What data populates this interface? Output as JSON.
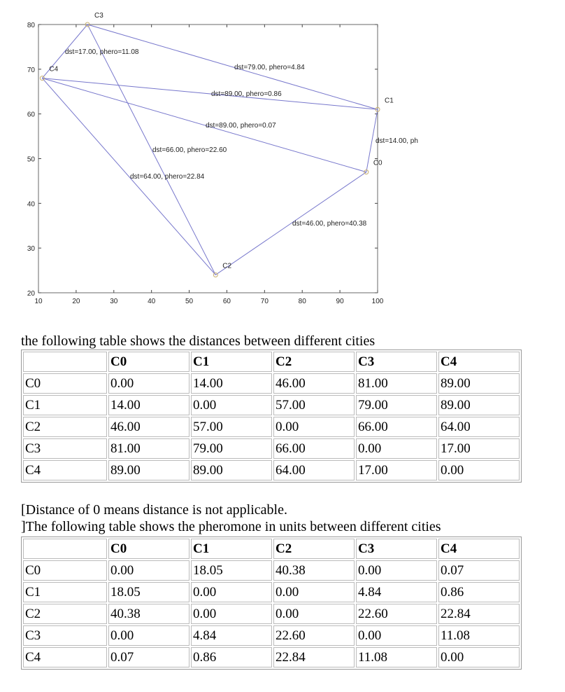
{
  "chart_data": {
    "type": "scatter",
    "xlim": [
      10,
      100
    ],
    "ylim": [
      20,
      80
    ],
    "xticks": [
      10,
      20,
      30,
      40,
      50,
      60,
      70,
      80,
      90,
      100
    ],
    "yticks": [
      20,
      30,
      40,
      50,
      60,
      70,
      80
    ],
    "line_color": "#7777cc",
    "marker_color": "#c8b070",
    "cities": [
      {
        "name": "C0",
        "x": 97,
        "y": 47
      },
      {
        "name": "C1",
        "x": 100,
        "y": 61
      },
      {
        "name": "C2",
        "x": 57,
        "y": 24
      },
      {
        "name": "C3",
        "x": 23,
        "y": 80
      },
      {
        "name": "C4",
        "x": 11,
        "y": 68
      }
    ],
    "edges": [
      {
        "from": "C4",
        "to": "C3",
        "label": "dst=17.00, phero=11.08"
      },
      {
        "from": "C3",
        "to": "C1",
        "label": "dst=79.00, phero=4.84"
      },
      {
        "from": "C4",
        "to": "C1",
        "label": "dst=89.00, phero=0.86"
      },
      {
        "from": "C4",
        "to": "C0",
        "label": "dst=89.00, phero=0.07"
      },
      {
        "from": "C3",
        "to": "C2",
        "label": "dst=66.00, phero=22.60"
      },
      {
        "from": "C4",
        "to": "C2",
        "label": "dst=64.00, phero=22.84"
      },
      {
        "from": "C1",
        "to": "C0",
        "label": "dst=14.00, ph"
      },
      {
        "from": "C0",
        "to": "C2",
        "label": "dst=46.00, phero=40.38"
      }
    ]
  },
  "distance_caption": "the following table shows the distances between different cities",
  "distance_table": {
    "headers": [
      "",
      "C0",
      "C1",
      "C2",
      "C3",
      "C4"
    ],
    "rows": [
      [
        "C0",
        "0.00",
        "14.00",
        "46.00",
        "81.00",
        "89.00"
      ],
      [
        "C1",
        "14.00",
        "0.00",
        "57.00",
        "79.00",
        "89.00"
      ],
      [
        "C2",
        "46.00",
        "57.00",
        "0.00",
        "66.00",
        "64.00"
      ],
      [
        "C3",
        "81.00",
        "79.00",
        "66.00",
        "0.00",
        "17.00"
      ],
      [
        "C4",
        "89.00",
        "89.00",
        "64.00",
        "17.00",
        "0.00"
      ]
    ]
  },
  "note_line1": "[Distance of 0 means distance is not applicable.",
  "note_line2": "]The following table shows the pheromone in units between different cities",
  "pheromone_table": {
    "headers": [
      "",
      "C0",
      "C1",
      "C2",
      "C3",
      "C4"
    ],
    "rows": [
      [
        "C0",
        "0.00",
        "18.05",
        "40.38",
        "0.00",
        "0.07"
      ],
      [
        "C1",
        "18.05",
        "0.00",
        "0.00",
        "4.84",
        "0.86"
      ],
      [
        "C2",
        "40.38",
        "0.00",
        "0.00",
        "22.60",
        "22.84"
      ],
      [
        "C3",
        "0.00",
        "4.84",
        "22.60",
        "0.00",
        "11.08"
      ],
      [
        "C4",
        "0.07",
        "0.86",
        "22.84",
        "11.08",
        "0.00"
      ]
    ]
  }
}
